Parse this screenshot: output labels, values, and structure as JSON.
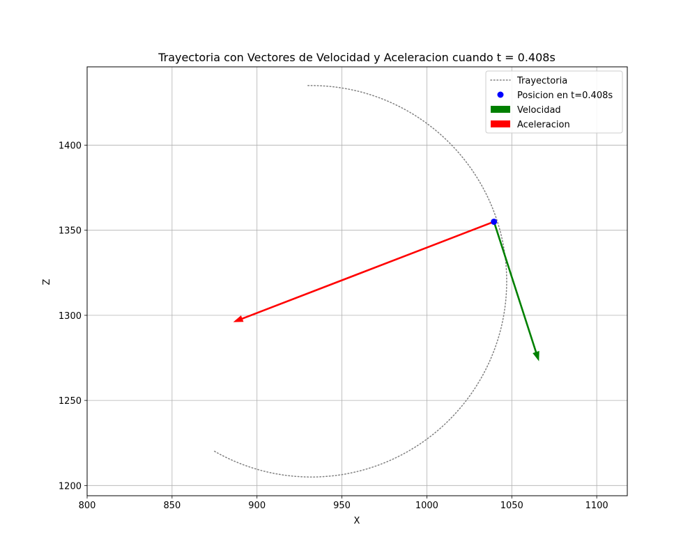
{
  "chart_data": {
    "type": "line",
    "title": "Trayectoria con Vectores de Velocidad y Aceleracion cuando t = 0.408s",
    "xlabel": "X",
    "ylabel": "Z",
    "xlim": [
      800,
      1118
    ],
    "ylim": [
      1194,
      1446
    ],
    "xticks": [
      800,
      850,
      900,
      950,
      1000,
      1050,
      1100
    ],
    "yticks": [
      1200,
      1250,
      1300,
      1350,
      1400
    ],
    "grid": true,
    "legend_position": "top-right",
    "trajectory": {
      "name": "Trayectoria",
      "color": "#808080",
      "style": "dotted",
      "center": [
        932,
        1320
      ],
      "radius": 115,
      "start_x": 930,
      "end_x": 874,
      "end_y": 1220
    },
    "position": {
      "name": "Posicion en t=0.408s",
      "x": 1039.5,
      "y": 1355,
      "color": "#0000ff"
    },
    "vectors": [
      {
        "name": "Velocidad",
        "color": "#008000",
        "from": [
          1039.5,
          1355
        ],
        "to": [
          1066,
          1273
        ]
      },
      {
        "name": "Aceleracion",
        "color": "#ff0000",
        "from": [
          1039.5,
          1355
        ],
        "to": [
          886,
          1296
        ]
      }
    ]
  }
}
